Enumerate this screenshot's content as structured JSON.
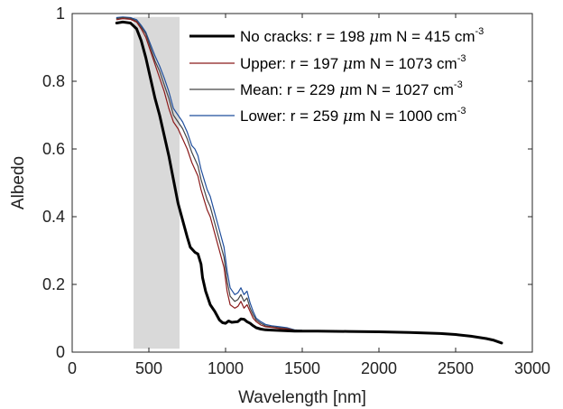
{
  "chart_data": {
    "type": "line",
    "xlabel": "Wavelength [nm]",
    "ylabel": "Albedo",
    "xlim": [
      0,
      3000
    ],
    "ylim": [
      0,
      1
    ],
    "xticks": [
      "0",
      "500",
      "1000",
      "1500",
      "2000",
      "2500",
      "3000"
    ],
    "yticks": [
      "0",
      "0.2",
      "0.4",
      "0.6",
      "0.8",
      "1"
    ],
    "grid": false,
    "legend_position": "top-right",
    "shaded_band": {
      "x": [
        400,
        700
      ],
      "y": [
        0.01,
        0.99
      ],
      "color": "#d9d9d9"
    },
    "series": [
      {
        "name": "No cracks",
        "legend": {
          "prefix": "No cracks: r = 198 ",
          "mu": "μ",
          "unit_text": "m N = 415 cm",
          "sup": "-3"
        },
        "color": "#000000",
        "width": 3,
        "x": [
          290,
          330,
          380,
          420,
          450,
          480,
          510,
          540,
          570,
          600,
          630,
          660,
          690,
          720,
          750,
          770,
          790,
          800,
          820,
          840,
          850,
          870,
          900,
          930,
          960,
          980,
          1000,
          1020,
          1040,
          1060,
          1080,
          1100,
          1120,
          1140,
          1160,
          1180,
          1200,
          1230,
          1260,
          1300,
          1350,
          1400,
          1450,
          1500,
          1600,
          1800,
          2000,
          2200,
          2400,
          2500,
          2600,
          2700,
          2750,
          2800
        ],
        "y": [
          0.972,
          0.975,
          0.972,
          0.955,
          0.92,
          0.87,
          0.81,
          0.75,
          0.7,
          0.64,
          0.58,
          0.51,
          0.44,
          0.39,
          0.34,
          0.31,
          0.3,
          0.295,
          0.29,
          0.26,
          0.22,
          0.18,
          0.14,
          0.12,
          0.095,
          0.087,
          0.085,
          0.092,
          0.088,
          0.089,
          0.09,
          0.098,
          0.097,
          0.09,
          0.085,
          0.078,
          0.072,
          0.068,
          0.066,
          0.065,
          0.064,
          0.063,
          0.062,
          0.062,
          0.062,
          0.061,
          0.06,
          0.058,
          0.055,
          0.052,
          0.047,
          0.04,
          0.035,
          0.027
        ]
      },
      {
        "name": "Upper",
        "legend": {
          "prefix": "Upper: r = 197 ",
          "mu": "μ",
          "unit_text": "m N = 1073 cm",
          "sup": "-3"
        },
        "color": "#8b1a1a",
        "width": 1.2,
        "x": [
          290,
          330,
          380,
          420,
          450,
          480,
          510,
          540,
          570,
          600,
          630,
          660,
          690,
          720,
          750,
          780,
          800,
          820,
          840,
          860,
          880,
          900,
          930,
          960,
          990,
          1010,
          1030,
          1060,
          1080,
          1100,
          1120,
          1140,
          1160,
          1180,
          1200,
          1230,
          1260,
          1300,
          1350,
          1400,
          1450,
          1500,
          1600,
          1800,
          2000,
          2200,
          2400,
          2500,
          2600,
          2700,
          2750,
          2800
        ],
        "y": [
          0.982,
          0.985,
          0.983,
          0.975,
          0.955,
          0.93,
          0.89,
          0.85,
          0.81,
          0.77,
          0.72,
          0.68,
          0.66,
          0.63,
          0.6,
          0.56,
          0.54,
          0.52,
          0.48,
          0.45,
          0.42,
          0.4,
          0.35,
          0.3,
          0.25,
          0.18,
          0.14,
          0.13,
          0.135,
          0.15,
          0.13,
          0.14,
          0.12,
          0.1,
          0.09,
          0.08,
          0.075,
          0.073,
          0.07,
          0.068,
          0.064,
          0.063,
          0.062,
          0.061,
          0.06,
          0.058,
          0.055,
          0.052,
          0.047,
          0.04,
          0.035,
          0.027
        ]
      },
      {
        "name": "Mean",
        "legend": {
          "prefix": "Mean: r = 229 ",
          "mu": "μ",
          "unit_text": "m N = 1027 cm",
          "sup": "-3"
        },
        "color": "#444444",
        "width": 1.2,
        "x": [
          290,
          330,
          380,
          420,
          450,
          480,
          510,
          540,
          570,
          600,
          630,
          660,
          690,
          720,
          750,
          780,
          800,
          820,
          840,
          860,
          880,
          900,
          930,
          960,
          990,
          1010,
          1030,
          1060,
          1080,
          1100,
          1120,
          1140,
          1160,
          1180,
          1200,
          1230,
          1260,
          1300,
          1350,
          1400,
          1450,
          1500,
          1600,
          1800,
          2000,
          2200,
          2400,
          2500,
          2600,
          2700,
          2750,
          2800
        ],
        "y": [
          0.985,
          0.988,
          0.986,
          0.978,
          0.96,
          0.94,
          0.9,
          0.86,
          0.83,
          0.79,
          0.75,
          0.7,
          0.68,
          0.66,
          0.63,
          0.59,
          0.57,
          0.55,
          0.51,
          0.48,
          0.45,
          0.43,
          0.38,
          0.33,
          0.28,
          0.21,
          0.165,
          0.15,
          0.155,
          0.17,
          0.15,
          0.16,
          0.13,
          0.11,
          0.095,
          0.085,
          0.078,
          0.075,
          0.072,
          0.07,
          0.065,
          0.064,
          0.063,
          0.061,
          0.06,
          0.058,
          0.055,
          0.052,
          0.047,
          0.04,
          0.035,
          0.027
        ]
      },
      {
        "name": "Lower",
        "legend": {
          "prefix": "Lower: r = 259 ",
          "mu": "μ",
          "unit_text": "m N = 1000 cm",
          "sup": "-3"
        },
        "color": "#1f4e9c",
        "width": 1.2,
        "x": [
          290,
          330,
          380,
          420,
          450,
          480,
          510,
          540,
          570,
          600,
          630,
          660,
          690,
          720,
          750,
          780,
          800,
          820,
          840,
          860,
          880,
          900,
          930,
          960,
          990,
          1010,
          1030,
          1060,
          1080,
          1100,
          1120,
          1140,
          1160,
          1180,
          1200,
          1230,
          1260,
          1300,
          1350,
          1400,
          1450,
          1500,
          1600,
          1800,
          2000,
          2200,
          2400,
          2500,
          2600,
          2700,
          2750,
          2800
        ],
        "y": [
          0.988,
          0.99,
          0.988,
          0.982,
          0.965,
          0.945,
          0.91,
          0.875,
          0.845,
          0.81,
          0.77,
          0.72,
          0.7,
          0.68,
          0.65,
          0.61,
          0.6,
          0.58,
          0.54,
          0.51,
          0.48,
          0.46,
          0.41,
          0.36,
          0.31,
          0.24,
          0.19,
          0.17,
          0.175,
          0.19,
          0.17,
          0.18,
          0.145,
          0.12,
          0.1,
          0.09,
          0.082,
          0.078,
          0.075,
          0.072,
          0.066,
          0.064,
          0.063,
          0.061,
          0.06,
          0.058,
          0.055,
          0.052,
          0.047,
          0.04,
          0.035,
          0.027
        ]
      }
    ]
  }
}
